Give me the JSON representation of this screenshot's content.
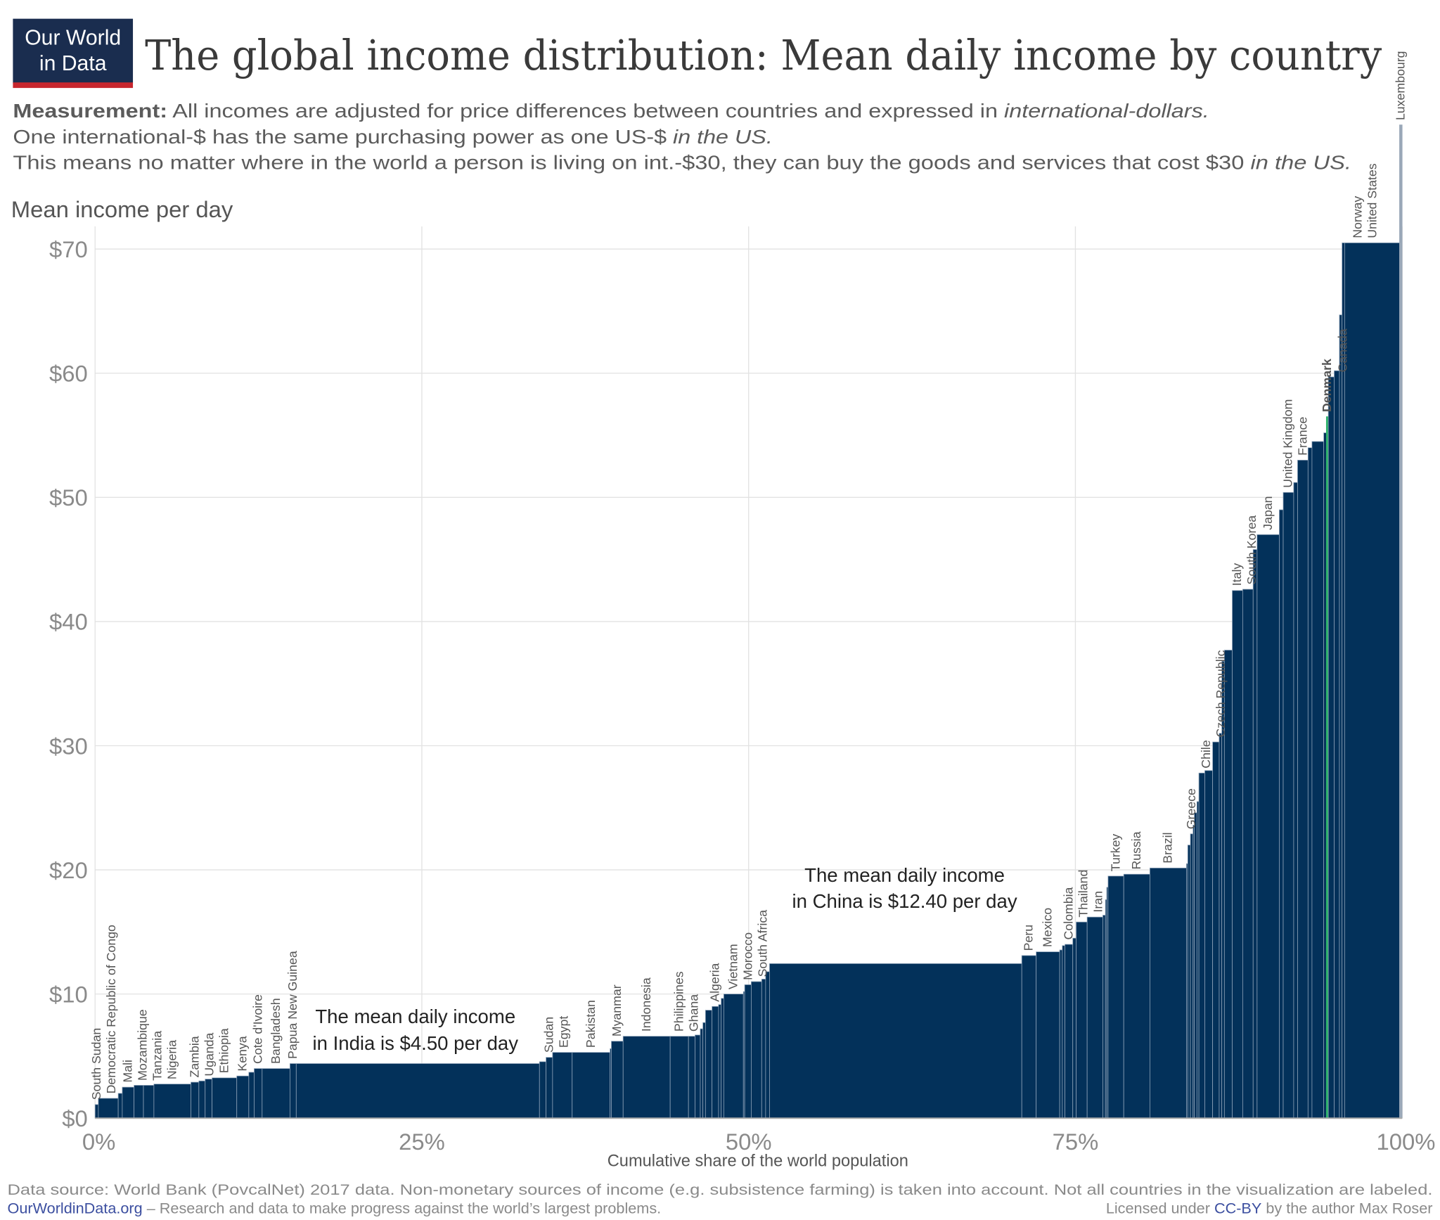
{
  "logo": {
    "line1": "Our World",
    "line2": "in Data",
    "bg": "#1a2d4f",
    "accent": "#c7262e"
  },
  "title": "The global income distribution: Mean daily income by country",
  "subtitle": {
    "line1_bold": "Measurement:",
    "line1_text": " All incomes are adjusted for price differences between countries and expressed in ",
    "line1_italic": "international-dollars.",
    "line2_text": "One international-$ has the same purchasing power as one US-$ ",
    "line2_italic": "in the US.",
    "line3_text": "This means no matter where in the world a person is living on int.-$30, they can buy the goods and services that cost $30 ",
    "line3_italic": "in the US."
  },
  "footer": {
    "source": "Data source: World Bank (PovcalNet) 2017 data. Non-monetary sources of income (e.g. subsistence farming) is taken into account. Not all countries in the visualization are labeled.",
    "site": "OurWorldinData.org",
    "tagline": " – Research and data to make progress against the world’s largest problems.",
    "license_pre": "Licensed under ",
    "license_link": "CC-BY",
    "license_post": " by the author Max Roser"
  },
  "chart_data": {
    "type": "bar",
    "subtype": "variable-width step (Marimekko)",
    "ylabel": "Mean income per day",
    "xlabel": "Cumulative share of the world population",
    "ylim": [
      0,
      70
    ],
    "xlim": [
      0,
      100
    ],
    "yticks": [
      "$0",
      "$10",
      "$20",
      "$30",
      "$40",
      "$50",
      "$60",
      "$70"
    ],
    "xticks": [
      "0%",
      "25%",
      "50%",
      "75%",
      "100%"
    ],
    "grid": true,
    "colors": {
      "bar": "#03315a",
      "separator": "#8ea2b8",
      "highlight": "#2db36b"
    },
    "highlight": "Denmark",
    "annotations": [
      {
        "line1": "The mean daily income",
        "line2": "in India is $4.50 per day"
      },
      {
        "line1": "The mean daily income",
        "line2": "in China is $12.40 per day"
      }
    ],
    "columns": [
      "label",
      "cumulative_population_pct_end",
      "mean_income_per_day"
    ],
    "steps": [
      [
        "South Sudan",
        0.25,
        1.1
      ],
      [
        "Democratic Republic of Congo",
        1.77,
        1.6
      ],
      [
        "",
        2.08,
        2.0
      ],
      [
        "Mali",
        2.98,
        2.5
      ],
      [
        "Mozambique",
        3.7,
        2.65
      ],
      [
        "Tanzania",
        4.5,
        2.65
      ],
      [
        "Nigeria",
        7.33,
        2.75
      ],
      [
        "Zambia",
        7.94,
        2.9
      ],
      [
        "Uganda",
        8.42,
        3.0
      ],
      [
        "",
        8.95,
        3.15
      ],
      [
        "Ethiopia",
        10.84,
        3.25
      ],
      [
        "Kenya",
        11.76,
        3.4
      ],
      [
        "",
        12.17,
        3.7
      ],
      [
        "Cote d'Ivoire",
        12.78,
        4.0
      ],
      [
        "Bangladesh",
        14.91,
        4.0
      ],
      [
        "Papua New Guinea",
        15.39,
        4.4
      ],
      [
        "",
        34.0,
        4.4
      ],
      [
        "",
        34.5,
        4.55
      ],
      [
        "Sudan",
        35.0,
        4.9
      ],
      [
        "Egypt",
        36.5,
        5.3
      ],
      [
        "Pakistan",
        39.4,
        5.3
      ],
      [
        "",
        39.5,
        5.6
      ],
      [
        "Myanmar",
        40.4,
        6.2
      ],
      [
        "Indonesia",
        44.0,
        6.6
      ],
      [
        "Philippines",
        45.4,
        6.6
      ],
      [
        "Ghana",
        45.9,
        6.6
      ],
      [
        "",
        46.3,
        6.7
      ],
      [
        "",
        46.5,
        7.2
      ],
      [
        "",
        46.7,
        7.7
      ],
      [
        "",
        47.2,
        8.7
      ],
      [
        "Algeria",
        47.7,
        9.0
      ],
      [
        "",
        47.9,
        9.15
      ],
      [
        "",
        48.1,
        9.65
      ],
      [
        "Vietnam",
        49.6,
        10.0
      ],
      [
        "",
        49.7,
        10.2
      ],
      [
        "Morocco",
        50.2,
        10.75
      ],
      [
        "South Africa",
        51.0,
        11.0
      ],
      [
        "",
        51.3,
        11.2
      ],
      [
        "",
        51.6,
        11.8
      ],
      [
        "",
        70.9,
        12.45
      ],
      [
        "Peru",
        72.0,
        13.1
      ],
      [
        "Mexico",
        73.8,
        13.4
      ],
      [
        "",
        74.0,
        13.55
      ],
      [
        "",
        74.2,
        13.9
      ],
      [
        "Colombia",
        74.8,
        14.0
      ],
      [
        "",
        75.06,
        14.5
      ],
      [
        "Thailand",
        75.9,
        15.8
      ],
      [
        "Iran",
        77.1,
        16.2
      ],
      [
        "",
        77.3,
        16.35
      ],
      [
        "",
        77.4,
        17.6
      ],
      [
        "",
        77.5,
        18.6
      ],
      [
        "Turkey",
        78.7,
        19.5
      ],
      [
        "Russia",
        80.7,
        19.65
      ],
      [
        "Brazil",
        83.5,
        20.15
      ],
      [
        "",
        83.6,
        20.5
      ],
      [
        "",
        83.8,
        22.0
      ],
      [
        "Greece",
        84.0,
        22.9
      ],
      [
        "",
        84.1,
        23.6
      ],
      [
        "",
        84.3,
        24.6
      ],
      [
        "",
        84.45,
        25.5
      ],
      [
        "Chile",
        84.9,
        27.8
      ],
      [
        "",
        85.5,
        28.0
      ],
      [
        "Czech Republic",
        86.0,
        30.3
      ],
      [
        "",
        86.2,
        31.0
      ],
      [
        "",
        86.4,
        36.8
      ],
      [
        "",
        87.0,
        37.7
      ],
      [
        "Italy",
        87.8,
        42.5
      ],
      [
        "South Korea",
        88.6,
        42.6
      ],
      [
        "",
        88.9,
        45.8
      ],
      [
        "Japan",
        90.6,
        47.0
      ],
      [
        "",
        90.9,
        49.0
      ],
      [
        "United Kingdom",
        91.7,
        50.4
      ],
      [
        "",
        92.0,
        51.2
      ],
      [
        "France",
        92.8,
        53.0
      ],
      [
        "",
        93.1,
        54.0
      ],
      [
        "",
        94.0,
        54.5
      ],
      [
        "",
        94.2,
        55.2
      ],
      [
        "Denmark",
        94.35,
        56.5
      ],
      [
        "Canada",
        94.8,
        59.7
      ],
      [
        "",
        95.2,
        60.2
      ],
      [
        "",
        95.4,
        64.7
      ],
      [
        "Norway",
        95.6,
        70.5
      ],
      [
        "United States",
        99.8,
        70.5
      ],
      [
        "Luxembourg",
        100,
        72
      ]
    ]
  }
}
